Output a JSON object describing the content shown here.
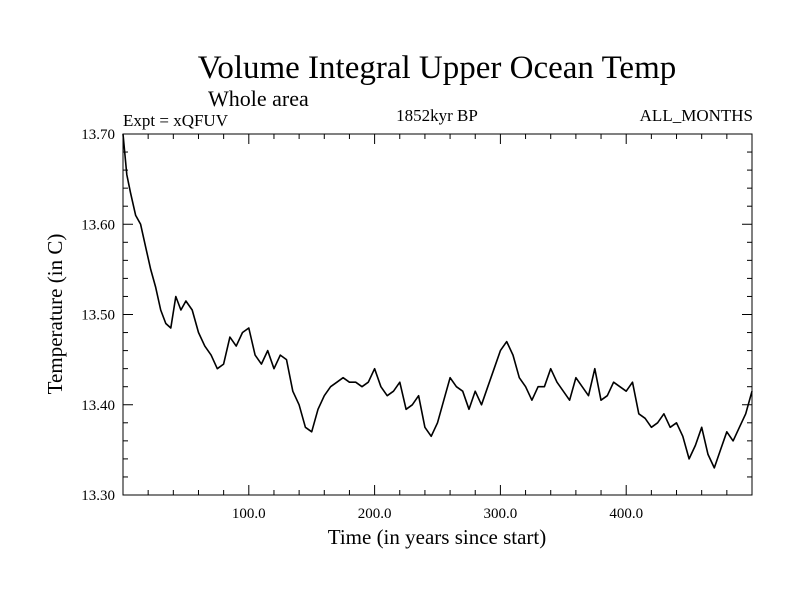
{
  "chart_data": {
    "type": "line",
    "title": "Volume Integral Upper Ocean Temp",
    "subtitle": "Whole area",
    "experiment_label": "Expt = xQFUV",
    "period_label": "1852kyr BP",
    "months_label": "ALL_MONTHS",
    "xlabel": "Time (in years since start)",
    "ylabel": "Temperature (in C)",
    "xlim": [
      0,
      500
    ],
    "ylim": [
      13.3,
      13.7
    ],
    "xticks": [
      100,
      200,
      300,
      400
    ],
    "xtick_labels": [
      "100.0",
      "200.0",
      "300.0",
      "400.0"
    ],
    "yticks": [
      13.3,
      13.4,
      13.5,
      13.6,
      13.7
    ],
    "ytick_labels": [
      "13.30",
      "13.40",
      "13.50",
      "13.60",
      "13.70"
    ],
    "grid": false,
    "series": [
      {
        "name": "Temperature",
        "color": "#000000",
        "x": [
          0,
          3,
          6,
          10,
          14,
          18,
          22,
          26,
          30,
          34,
          38,
          42,
          46,
          50,
          55,
          60,
          65,
          70,
          75,
          80,
          85,
          90,
          95,
          100,
          105,
          110,
          115,
          120,
          125,
          130,
          135,
          140,
          145,
          150,
          155,
          160,
          165,
          170,
          175,
          180,
          185,
          190,
          195,
          200,
          205,
          210,
          215,
          220,
          225,
          230,
          235,
          240,
          245,
          250,
          255,
          260,
          265,
          270,
          275,
          280,
          285,
          290,
          295,
          300,
          305,
          310,
          315,
          320,
          325,
          330,
          335,
          340,
          345,
          350,
          355,
          360,
          365,
          370,
          375,
          380,
          385,
          390,
          395,
          400,
          405,
          410,
          415,
          420,
          425,
          430,
          435,
          440,
          445,
          450,
          455,
          460,
          465,
          470,
          475,
          480,
          485,
          490,
          495,
          500
        ],
        "values": [
          13.7,
          13.655,
          13.635,
          13.61,
          13.6,
          13.575,
          13.55,
          13.53,
          13.505,
          13.49,
          13.485,
          13.52,
          13.505,
          13.515,
          13.505,
          13.48,
          13.465,
          13.455,
          13.44,
          13.445,
          13.475,
          13.465,
          13.48,
          13.485,
          13.455,
          13.445,
          13.46,
          13.44,
          13.455,
          13.45,
          13.415,
          13.4,
          13.375,
          13.37,
          13.395,
          13.41,
          13.42,
          13.425,
          13.43,
          13.425,
          13.425,
          13.42,
          13.425,
          13.44,
          13.42,
          13.41,
          13.415,
          13.425,
          13.395,
          13.4,
          13.41,
          13.375,
          13.365,
          13.38,
          13.405,
          13.43,
          13.42,
          13.415,
          13.395,
          13.415,
          13.4,
          13.42,
          13.44,
          13.46,
          13.47,
          13.455,
          13.43,
          13.42,
          13.405,
          13.42,
          13.42,
          13.44,
          13.425,
          13.415,
          13.405,
          13.43,
          13.42,
          13.41,
          13.44,
          13.405,
          13.41,
          13.425,
          13.42,
          13.415,
          13.425,
          13.39,
          13.385,
          13.375,
          13.38,
          13.39,
          13.375,
          13.38,
          13.365,
          13.34,
          13.355,
          13.375,
          13.345,
          13.33,
          13.35,
          13.37,
          13.36,
          13.375,
          13.39,
          13.415
        ]
      }
    ]
  }
}
